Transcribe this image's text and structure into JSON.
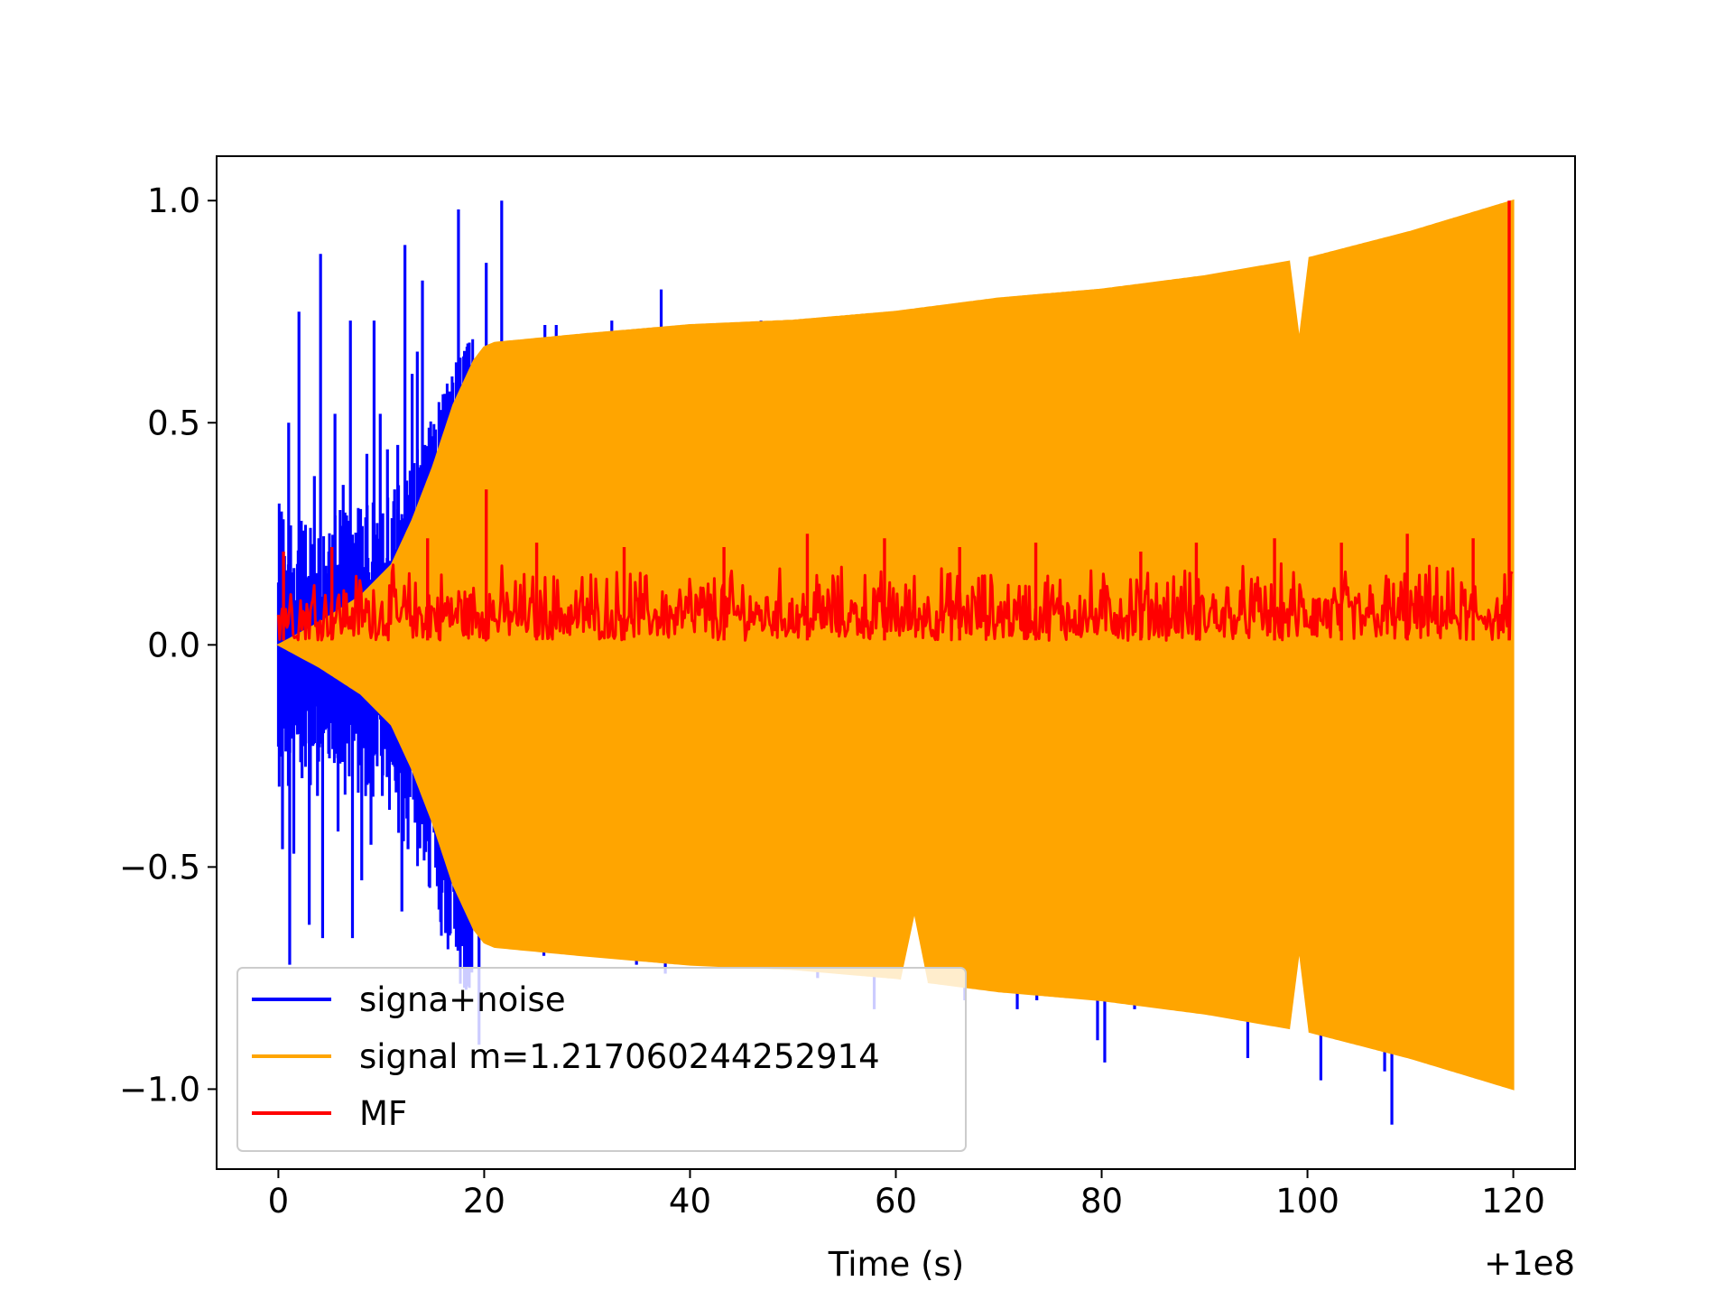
{
  "chart_data": {
    "type": "line",
    "title": "",
    "xlabel": "Time (s)",
    "ylabel": "",
    "x_offset_label": "+1e8",
    "xlim": [
      -6,
      126
    ],
    "ylim": [
      -1.18,
      1.1
    ],
    "x_ticks": [
      0,
      20,
      40,
      60,
      80,
      100,
      120
    ],
    "x_tick_labels": [
      "0",
      "20",
      "40",
      "60",
      "80",
      "100",
      "120"
    ],
    "y_ticks": [
      1.0,
      0.5,
      0.0,
      -0.5,
      -1.0
    ],
    "y_tick_labels": [
      "1.0",
      "0.5",
      "0.0",
      "−0.5",
      "−1.0"
    ],
    "grid": false,
    "legend_position": "lower-left",
    "series": [
      {
        "name": "signa+noise",
        "color": "#0000ff",
        "spikes": [
          {
            "x": 0.3,
            "y": 0.3
          },
          {
            "x": 0.4,
            "y": -0.46
          },
          {
            "x": 0.6,
            "y": 0.2
          },
          {
            "x": 1.0,
            "y": 0.5
          },
          {
            "x": 1.1,
            "y": -0.72
          },
          {
            "x": 1.5,
            "y": -0.47
          },
          {
            "x": 2.0,
            "y": 0.75
          },
          {
            "x": 2.3,
            "y": -0.3
          },
          {
            "x": 2.8,
            "y": 0.13
          },
          {
            "x": 3.0,
            "y": -0.63
          },
          {
            "x": 3.5,
            "y": 0.38
          },
          {
            "x": 3.8,
            "y": -0.34
          },
          {
            "x": 4.1,
            "y": 0.88
          },
          {
            "x": 4.3,
            "y": -0.66
          },
          {
            "x": 4.9,
            "y": 0.21
          },
          {
            "x": 5.5,
            "y": 0.52
          },
          {
            "x": 5.8,
            "y": -0.42
          },
          {
            "x": 6.3,
            "y": 0.36
          },
          {
            "x": 7.0,
            "y": 0.73
          },
          {
            "x": 7.2,
            "y": -0.66
          },
          {
            "x": 7.6,
            "y": 0.25
          },
          {
            "x": 8.1,
            "y": -0.53
          },
          {
            "x": 8.6,
            "y": 0.43
          },
          {
            "x": 9.0,
            "y": -0.45
          },
          {
            "x": 9.3,
            "y": 0.73
          },
          {
            "x": 9.9,
            "y": 0.52
          },
          {
            "x": 10.1,
            "y": -0.34
          },
          {
            "x": 10.6,
            "y": 0.44
          },
          {
            "x": 11.3,
            "y": 0.35
          },
          {
            "x": 11.6,
            "y": 0.45
          },
          {
            "x": 12.0,
            "y": -0.6
          },
          {
            "x": 12.3,
            "y": 0.9
          },
          {
            "x": 12.6,
            "y": -0.46
          },
          {
            "x": 13.0,
            "y": 0.61
          },
          {
            "x": 13.5,
            "y": 0.66
          },
          {
            "x": 14.0,
            "y": 0.82
          },
          {
            "x": 14.7,
            "y": 0.28
          },
          {
            "x": 15.3,
            "y": -0.41
          },
          {
            "x": 15.8,
            "y": 0.24
          },
          {
            "x": 16.6,
            "y": 0.18
          },
          {
            "x": 17.5,
            "y": 0.98
          },
          {
            "x": 18.0,
            "y": -0.28
          },
          {
            "x": 18.6,
            "y": 0.41
          },
          {
            "x": 19.0,
            "y": -0.43
          },
          {
            "x": 19.5,
            "y": 0.35
          },
          {
            "x": 20.0,
            "y": 0.55
          },
          {
            "x": 20.6,
            "y": -0.67
          },
          {
            "x": 21.1,
            "y": 0.66
          },
          {
            "x": 21.7,
            "y": 1.0
          },
          {
            "x": 22.3,
            "y": -0.55
          },
          {
            "x": 22.9,
            "y": 0.5
          },
          {
            "x": 23.4,
            "y": -0.42
          },
          {
            "x": 23.9,
            "y": 0.62
          },
          {
            "x": 24.6,
            "y": -0.49
          },
          {
            "x": 25.5,
            "y": 0.45
          },
          {
            "x": 26.3,
            "y": -0.66
          },
          {
            "x": 27.0,
            "y": 0.72
          },
          {
            "x": 27.8,
            "y": -0.62
          },
          {
            "x": 28.4,
            "y": 0.53
          },
          {
            "x": 19.5,
            "y": -0.9
          },
          {
            "x": 20.2,
            "y": 0.86
          },
          {
            "x": 25.8,
            "y": -0.7
          },
          {
            "x": 25.9,
            "y": 0.72
          },
          {
            "x": 32.4,
            "y": 0.73
          },
          {
            "x": 34.8,
            "y": -0.72
          },
          {
            "x": 37.2,
            "y": 0.8
          },
          {
            "x": 37.6,
            "y": -0.74
          },
          {
            "x": 46.9,
            "y": 0.73
          },
          {
            "x": 52.4,
            "y": -0.75
          },
          {
            "x": 57.9,
            "y": -0.82
          },
          {
            "x": 66.7,
            "y": -0.8
          },
          {
            "x": 71.8,
            "y": -0.82
          },
          {
            "x": 73.7,
            "y": -0.8
          },
          {
            "x": 79.6,
            "y": -0.89
          },
          {
            "x": 80.3,
            "y": -0.94
          },
          {
            "x": 83.2,
            "y": -0.82
          },
          {
            "x": 94.2,
            "y": -0.93
          },
          {
            "x": 101.3,
            "y": -0.98
          },
          {
            "x": 107.5,
            "y": -0.96
          },
          {
            "x": 108.2,
            "y": -1.08
          }
        ]
      },
      {
        "name": "signal m=1.217060244252914",
        "color": "#ffa500",
        "envelope": {
          "x": [
            0,
            4,
            8,
            11,
            13,
            15,
            17,
            19,
            20,
            21,
            30,
            40,
            50,
            60,
            70,
            80,
            90,
            100,
            110,
            120
          ],
          "y": [
            0.0,
            0.05,
            0.11,
            0.18,
            0.28,
            0.4,
            0.54,
            0.64,
            0.67,
            0.68,
            0.7,
            0.72,
            0.73,
            0.75,
            0.78,
            0.8,
            0.83,
            0.87,
            0.93,
            1.0
          ]
        },
        "dips": [
          {
            "x": 61.8,
            "y": 0.61,
            "side": "bottom",
            "width": 1.3
          },
          {
            "x": 99.2,
            "y": 0.7,
            "side": "both",
            "width": 0.9
          }
        ]
      },
      {
        "name": "MF",
        "color": "#ff0000",
        "baseline": [
          0.01,
          0.16
        ],
        "peaks": [
          {
            "x": 0.5,
            "y": 0.21
          },
          {
            "x": 20.2,
            "y": 0.35
          },
          {
            "x": 119.6,
            "y": 1.0
          },
          {
            "x": 5.2,
            "y": 0.22
          },
          {
            "x": 14.5,
            "y": 0.24
          },
          {
            "x": 25.1,
            "y": 0.23
          },
          {
            "x": 33.6,
            "y": 0.22
          },
          {
            "x": 43.3,
            "y": 0.22
          },
          {
            "x": 51.4,
            "y": 0.25
          },
          {
            "x": 58.9,
            "y": 0.24
          },
          {
            "x": 66.2,
            "y": 0.22
          },
          {
            "x": 73.6,
            "y": 0.23
          },
          {
            "x": 83.8,
            "y": 0.21
          },
          {
            "x": 89.2,
            "y": 0.23
          },
          {
            "x": 96.8,
            "y": 0.24
          },
          {
            "x": 103.3,
            "y": 0.23
          },
          {
            "x": 109.7,
            "y": 0.25
          },
          {
            "x": 116.1,
            "y": 0.24
          }
        ]
      }
    ]
  }
}
